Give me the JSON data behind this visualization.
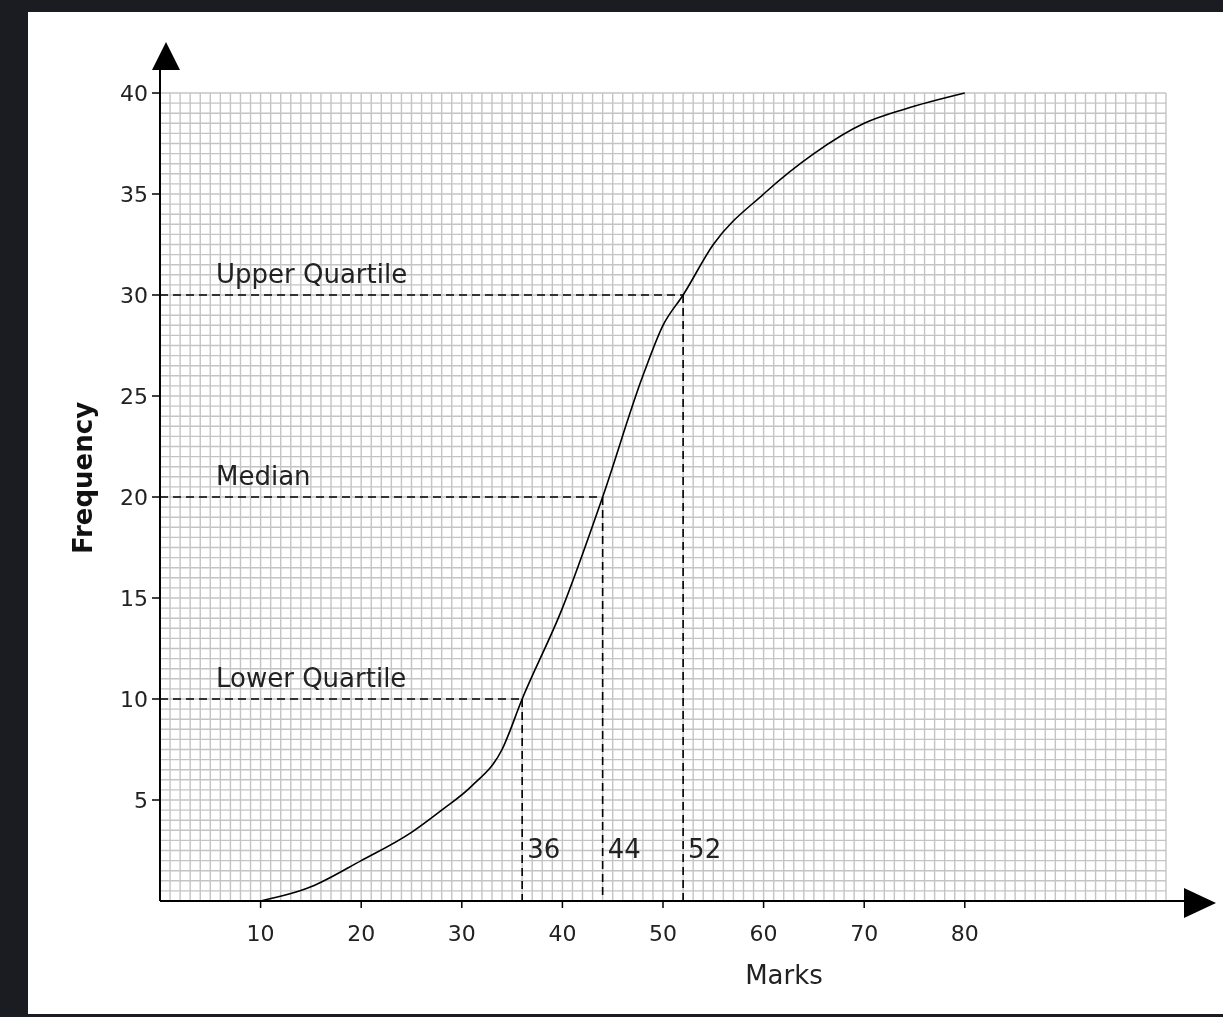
{
  "chart_data": {
    "type": "line",
    "xlabel": "Marks",
    "ylabel": "Frequency",
    "x": [
      10,
      15,
      20,
      25,
      28,
      31,
      34,
      36,
      40,
      44,
      48,
      50,
      52,
      55,
      60,
      65,
      70,
      74,
      80
    ],
    "series": [
      {
        "color": "#000000",
        "values": [
          0,
          0.7,
          2,
          3.4,
          4.5,
          5.7,
          7.5,
          10,
          14.5,
          20,
          26,
          28.5,
          30,
          32.5,
          35,
          37,
          38.5,
          39.2,
          40
        ]
      },
      {
        "name": "Lower Quartile",
        "color": "#000000",
        "line_style": "dashed",
        "x": [
          0,
          36
        ],
        "values": [
          10,
          10
        ]
      },
      {
        "name": "Median",
        "color": "#000000",
        "line_style": "dashed",
        "x": [
          0,
          44
        ],
        "values": [
          20,
          20
        ]
      },
      {
        "name": "Upper Quartile",
        "color": "#000000",
        "line_style": "dashed",
        "x": [
          0,
          52
        ],
        "values": [
          30,
          30
        ]
      },
      {
        "name": "36",
        "color": "#000000",
        "line_style": "dashed",
        "x": [
          36,
          36
        ],
        "values": [
          10,
          0
        ]
      },
      {
        "name": "44",
        "color": "#000000",
        "line_style": "dashed",
        "x": [
          44,
          44
        ],
        "values": [
          20,
          0
        ]
      },
      {
        "name": "52",
        "color": "#000000",
        "line_style": "dashed",
        "x": [
          52,
          52
        ],
        "values": [
          30,
          0
        ]
      }
    ],
    "xlim": [
      0,
      100
    ],
    "ylim": [
      0,
      40
    ],
    "xticks": [
      10,
      20,
      30,
      40,
      50,
      60,
      70,
      80
    ],
    "yticks": [
      5,
      10,
      15,
      20,
      25,
      30,
      35,
      40
    ],
    "grid": true,
    "marker": "none",
    "line_style": "solid"
  }
}
